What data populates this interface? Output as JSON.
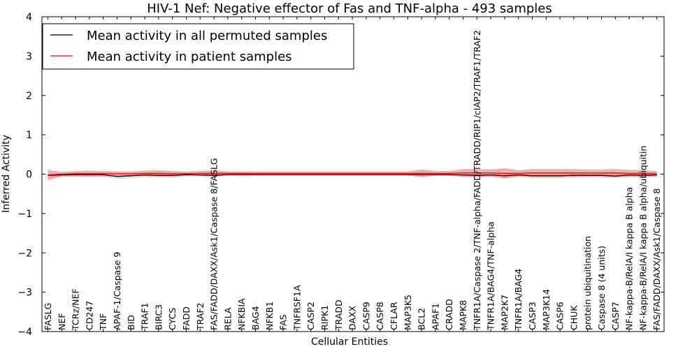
{
  "chart_data": {
    "type": "line",
    "title": "HIV-1 Nef: Negative effector of Fas and TNF-alpha - 493 samples",
    "xlabel": "Cellular Entities",
    "ylabel": "Inferred Activity",
    "ylim": [
      -4,
      4
    ],
    "yticks": [
      4,
      3,
      2,
      1,
      0,
      -1,
      -2,
      -3,
      -4
    ],
    "ytick_labels": [
      "4",
      "3",
      "2",
      "1",
      "0",
      "−1",
      "−2",
      "−3",
      "−4"
    ],
    "categories": [
      "FASLG",
      "NEF",
      "TCRz/NEF",
      "CD247",
      "TNF",
      "APAF-1/Caspase 9",
      "BID",
      "TRAF1",
      "BIRC3",
      "CYCS",
      "FADD",
      "TRAF2",
      "FAS/FADD/DAXX/Ask1/Caspase 8/FASLG",
      "RELA",
      "NFKBIA",
      "BAG4",
      "NFKB1",
      "FAS",
      "TNFRSF1A",
      "CASP2",
      "RIPK1",
      "TRADD",
      "DAXX",
      "CASP9",
      "CASP8",
      "CFLAR",
      "MAP3K5",
      "BCL2",
      "APAF1",
      "CRADD",
      "MAPK8",
      "TNFR1A/Caspase 2/TNF-alpha/FADD/TRADD/RIP1/cIAP2/TRAF1/TRAF2",
      "TNFR1A/BAG4/TNF-alpha",
      "MAP2K7",
      "TNFR1A/BAG4",
      "CASP3",
      "MAP3K14",
      "CASP6",
      "CHUK",
      "protein ubiquitination",
      "Caspase 8 (4 units)",
      "CASP7",
      "NF-kappa-B/RelA/I kappa B alpha",
      "NF-kappa-B/RelA/I kappa B alpha/ubiquitin",
      "FAS/FADD/DAXX/Ask1/Caspase 8"
    ],
    "series": [
      {
        "name": "Mean activity in all permuted samples",
        "color": "#000000",
        "values": [
          -0.03,
          -0.02,
          -0.01,
          -0.01,
          -0.01,
          -0.06,
          -0.04,
          -0.02,
          -0.03,
          -0.03,
          -0.01,
          -0.02,
          -0.03,
          -0.01,
          -0.01,
          -0.01,
          -0.01,
          -0.01,
          -0.01,
          -0.01,
          -0.01,
          -0.01,
          -0.01,
          -0.01,
          -0.01,
          -0.01,
          -0.01,
          -0.01,
          -0.01,
          -0.01,
          -0.02,
          -0.03,
          -0.02,
          -0.04,
          -0.02,
          -0.04,
          -0.04,
          -0.04,
          -0.03,
          -0.03,
          -0.03,
          -0.05,
          -0.02,
          -0.03,
          -0.02
        ],
        "band": [
          0.06,
          0.05,
          0.05,
          0.05,
          0.05,
          0.07,
          0.06,
          0.06,
          0.06,
          0.06,
          0.05,
          0.05,
          0.05,
          0.04,
          0.05,
          0.04,
          0.04,
          0.04,
          0.04,
          0.04,
          0.04,
          0.04,
          0.04,
          0.04,
          0.04,
          0.04,
          0.04,
          0.04,
          0.04,
          0.04,
          0.05,
          0.05,
          0.05,
          0.06,
          0.05,
          0.07,
          0.07,
          0.07,
          0.06,
          0.06,
          0.06,
          0.06,
          0.05,
          0.05,
          0.05
        ]
      },
      {
        "name": "Mean activity in patient samples",
        "color": "#ff0000",
        "band_color": "#f08080",
        "values": [
          -0.02,
          0.0,
          0.01,
          0.01,
          0.01,
          0.01,
          0.01,
          0.02,
          0.02,
          0.01,
          0.01,
          0.02,
          0.02,
          0.02,
          0.02,
          0.02,
          0.02,
          0.02,
          0.02,
          0.02,
          0.02,
          0.02,
          0.02,
          0.02,
          0.02,
          0.02,
          0.02,
          0.02,
          0.02,
          0.02,
          0.03,
          0.03,
          0.03,
          0.02,
          0.02,
          0.03,
          0.03,
          0.03,
          0.03,
          0.03,
          0.03,
          0.03,
          0.02,
          0.02,
          0.01
        ],
        "band": [
          0.13,
          0.06,
          0.07,
          0.08,
          0.07,
          0.06,
          0.06,
          0.07,
          0.08,
          0.07,
          0.06,
          0.06,
          0.08,
          0.05,
          0.05,
          0.05,
          0.05,
          0.05,
          0.05,
          0.05,
          0.05,
          0.05,
          0.05,
          0.05,
          0.05,
          0.05,
          0.05,
          0.1,
          0.06,
          0.06,
          0.1,
          0.1,
          0.09,
          0.13,
          0.08,
          0.1,
          0.1,
          0.1,
          0.1,
          0.09,
          0.09,
          0.1,
          0.09,
          0.08,
          0.07
        ]
      }
    ],
    "legend": "upper-left",
    "grid": false
  }
}
